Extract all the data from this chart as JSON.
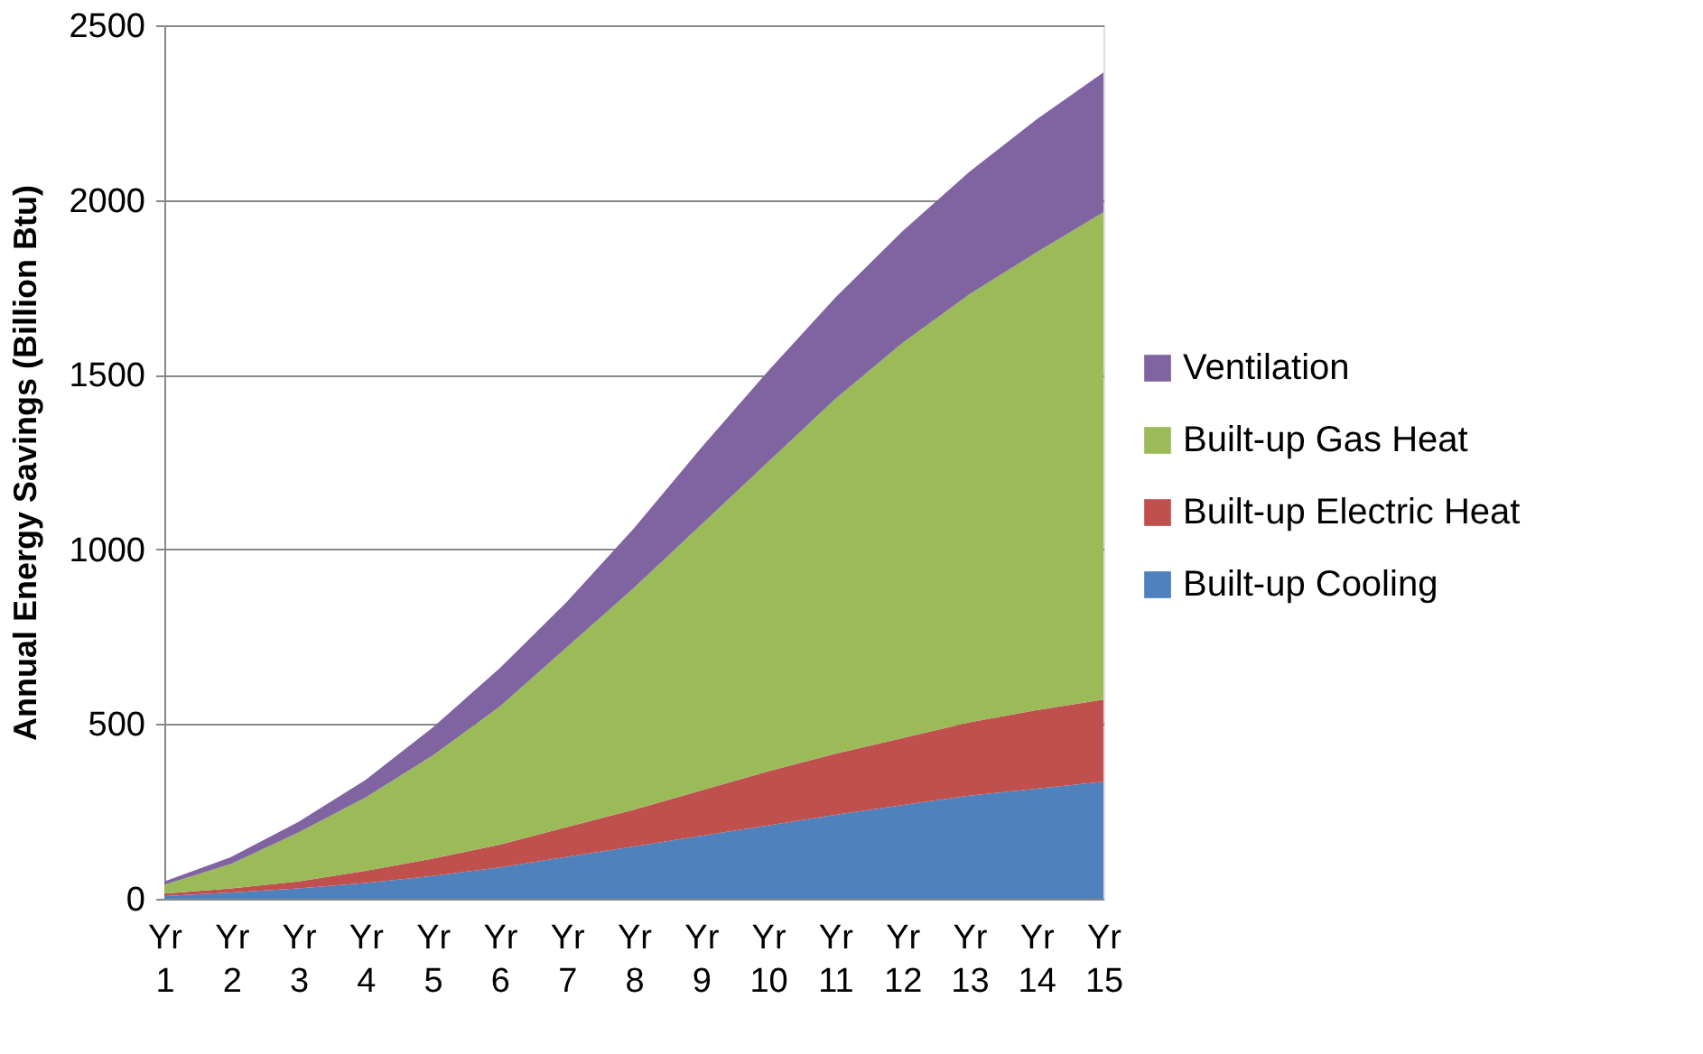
{
  "chart_data": {
    "type": "area",
    "stacked": true,
    "ylabel": "Annual Energy Savings (Billion Btu)",
    "categories": [
      "Yr 1",
      "Yr 2",
      "Yr 3",
      "Yr 4",
      "Yr 5",
      "Yr 6",
      "Yr 7",
      "Yr 8",
      "Yr 9",
      "Yr 10",
      "Yr 11",
      "Yr 12",
      "Yr 13",
      "Yr 14",
      "Yr 15"
    ],
    "series": [
      {
        "name": "Built-up Cooling",
        "color": "#4f81bd",
        "values": [
          8,
          18,
          30,
          45,
          65,
          90,
          120,
          150,
          180,
          210,
          240,
          268,
          295,
          315,
          335
        ]
      },
      {
        "name": "Built-up Electric Heat",
        "color": "#c0504d",
        "values": [
          7,
          12,
          20,
          35,
          50,
          65,
          85,
          105,
          130,
          155,
          175,
          192,
          210,
          225,
          235
        ]
      },
      {
        "name": "Built-up Gas Heat",
        "color": "#9bbb59",
        "values": [
          25,
          70,
          140,
          210,
          295,
          395,
          515,
          635,
          760,
          885,
          1015,
          1130,
          1225,
          1310,
          1395
        ]
      },
      {
        "name": "Ventilation",
        "color": "#8064a2",
        "values": [
          10,
          20,
          30,
          50,
          80,
          110,
          130,
          170,
          220,
          260,
          290,
          320,
          350,
          380,
          400
        ]
      }
    ],
    "ylim": [
      0,
      2500
    ],
    "yticks": [
      0,
      500,
      1000,
      1500,
      2000,
      2500
    ],
    "grid": "y",
    "legend": "right"
  }
}
